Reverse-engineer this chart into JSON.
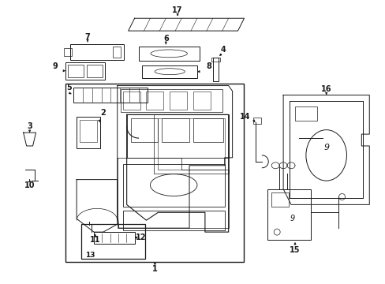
{
  "bg_color": "#ffffff",
  "fig_width": 4.89,
  "fig_height": 3.6,
  "dpi": 100,
  "line_color": "#1a1a1a",
  "label_fontsize": 7.0,
  "label_fontsize_sm": 6.5
}
